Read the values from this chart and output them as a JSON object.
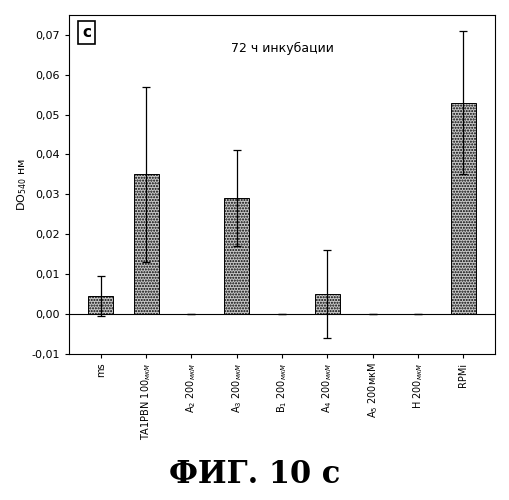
{
  "categories": [
    "ms",
    "TA1PBN 100 мкМ",
    "A₂ 200 мкМ",
    "A₃ 200 мкМ",
    "B₁ 200 мкМ",
    "A₄ 200 мкМ",
    "A₅ 200мкМ",
    "H 200 мкМ",
    "RPMi"
  ],
  "values": [
    0.0045,
    0.035,
    0.0,
    0.029,
    0.0,
    0.005,
    0.0,
    0.0,
    0.053
  ],
  "errors": [
    0.005,
    0.022,
    0.0,
    0.012,
    0.0,
    0.011,
    0.0,
    0.0,
    0.018
  ],
  "bar_color": "#c8c8c8",
  "ylabel": "DO$_{540}$ нм",
  "ylim": [
    -0.01,
    0.075
  ],
  "yticks": [
    -0.01,
    0.0,
    0.01,
    0.02,
    0.03,
    0.04,
    0.05,
    0.06,
    0.07
  ],
  "ytick_labels": [
    "-0,01",
    "0,00",
    "0,01",
    "0,02",
    "0,03",
    "0,04",
    "0,05",
    "0,06",
    "0,07"
  ],
  "annotation_text": "72 ч инкубации",
  "panel_label": "c",
  "figure_caption": "ФИГ. 10 с",
  "background_color": "#ffffff",
  "x_tick_fontsize": 7.0,
  "y_tick_fontsize": 8,
  "ylabel_fontsize": 8,
  "annotation_fontsize": 9,
  "caption_fontsize": 22
}
